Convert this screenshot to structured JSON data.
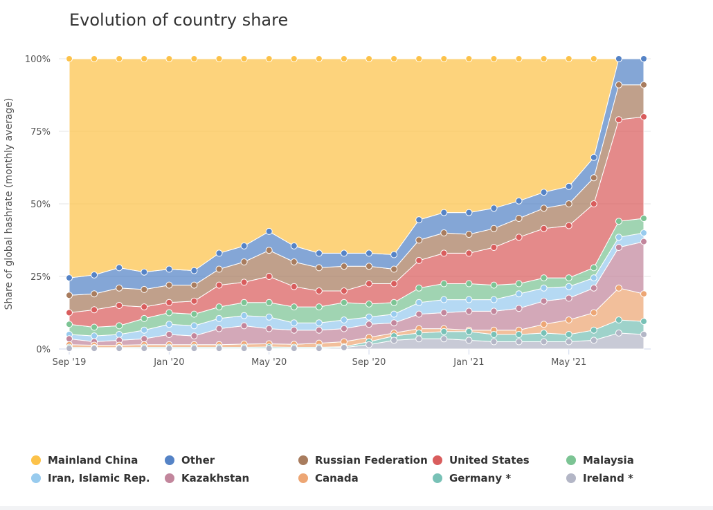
{
  "chart_data": {
    "type": "stacked-area",
    "title": "Evolution of country share",
    "y_label": "Share of global hashrate (monthly average)",
    "categories": [
      "Sep '19",
      null,
      null,
      null,
      "Jan '20",
      null,
      null,
      null,
      "May '20",
      null,
      null,
      null,
      "Sep '20",
      null,
      null,
      null,
      "Jan '21",
      null,
      null,
      null,
      "May '21",
      null,
      null,
      null
    ],
    "ylim": [
      0,
      100
    ],
    "yticks": [
      {
        "value": 0,
        "label": "0%"
      },
      {
        "value": 25,
        "label": "25%"
      },
      {
        "value": 50,
        "label": "50%"
      },
      {
        "value": 75,
        "label": "75%"
      },
      {
        "value": 100,
        "label": "100%"
      }
    ],
    "grid": true,
    "series": [
      {
        "name": "Mainland China",
        "color": "#fcc24a",
        "values": [
          75.5,
          74.5,
          72,
          73.5,
          72.5,
          73,
          67,
          64.5,
          59.5,
          64.5,
          67,
          67,
          67,
          67.5,
          55.5,
          53,
          53,
          51.5,
          49,
          46,
          44,
          34,
          0,
          0
        ]
      },
      {
        "name": "Other",
        "color": "#5583c6",
        "values": [
          6,
          6.5,
          7,
          6,
          5.5,
          5,
          5.5,
          5.5,
          6.5,
          5.5,
          5,
          4.5,
          4.5,
          5,
          7,
          7,
          7.5,
          7,
          6,
          5.5,
          6,
          7,
          9,
          9
        ]
      },
      {
        "name": "Russian Federation",
        "color": "#a87c5e",
        "values": [
          6,
          5.5,
          6,
          6,
          6,
          5.5,
          5.5,
          7,
          9,
          8.5,
          8,
          8.5,
          6,
          5,
          7,
          7,
          6.5,
          6.5,
          6.5,
          7,
          7.5,
          9,
          12,
          11
        ]
      },
      {
        "name": "United States",
        "color": "#d95d5d",
        "values": [
          4,
          6,
          7,
          4,
          3.5,
          4.5,
          7.5,
          7,
          9,
          7,
          5.5,
          4,
          7,
          6.5,
          9.5,
          10.5,
          10.5,
          13,
          16,
          17,
          18,
          22,
          35,
          35
        ]
      },
      {
        "name": "Malaysia",
        "color": "#7cc494",
        "values": [
          3.5,
          3,
          3,
          4,
          4,
          4,
          4,
          4.5,
          5,
          5.5,
          5.5,
          6,
          4.5,
          4,
          5,
          5.5,
          5.5,
          5,
          3.5,
          3.5,
          3,
          3.5,
          5.5,
          5
        ]
      },
      {
        "name": "Iran, Islamic Rep.",
        "color": "#98cbee",
        "values": [
          1.5,
          2,
          2,
          3,
          3.5,
          3.5,
          3.5,
          3.5,
          4,
          2.5,
          2.5,
          3,
          2.5,
          3,
          4,
          4.5,
          4,
          4,
          5,
          4.5,
          4,
          3.5,
          3.5,
          3
        ]
      },
      {
        "name": "Kazakhstan",
        "color": "#c2869c",
        "values": [
          2,
          1.2,
          1.7,
          2,
          3.5,
          3,
          5.5,
          6.3,
          5.2,
          4.9,
          4.5,
          4.5,
          4.5,
          3.5,
          5,
          5.5,
          6.5,
          6.5,
          7.5,
          8,
          7.5,
          8.5,
          14,
          18
        ]
      },
      {
        "name": "Canada",
        "color": "#eda674",
        "values": [
          0.9,
          0.8,
          0.8,
          0.9,
          0.9,
          0.9,
          0.9,
          1.1,
          1.1,
          1,
          1.4,
          1.7,
          1.5,
          1,
          1.5,
          1,
          0.5,
          1.5,
          1.5,
          3,
          5,
          6,
          11,
          9.5
        ]
      },
      {
        "name": "Germany *",
        "color": "#78c1b6",
        "values": [
          0.4,
          0.3,
          0.3,
          0.4,
          0.4,
          0.4,
          0.4,
          0.4,
          0.5,
          0.4,
          0.4,
          0.3,
          1,
          1.5,
          2,
          2.5,
          3,
          2.5,
          2.5,
          3,
          2.5,
          3.5,
          4.5,
          4.5
        ]
      },
      {
        "name": "Ireland *",
        "color": "#b3b6c6",
        "values": [
          0.2,
          0.2,
          0.2,
          0.2,
          0.2,
          0.2,
          0.2,
          0.2,
          0.2,
          0.2,
          0.2,
          0.5,
          1.5,
          3,
          3.5,
          3.5,
          3,
          2.5,
          2.5,
          2.5,
          2.5,
          3,
          5.5,
          5
        ]
      }
    ]
  }
}
